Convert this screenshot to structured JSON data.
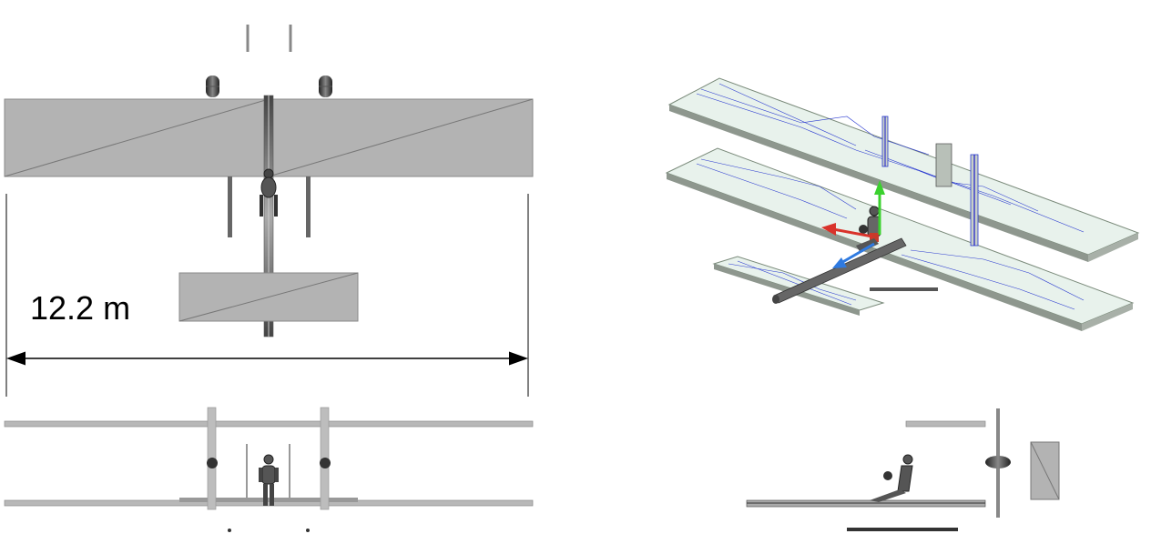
{
  "dimension": {
    "span_label": "12.2 m"
  },
  "views": {
    "top": "top-view",
    "front": "front-view",
    "isometric": "isometric-view",
    "side": "side-view"
  },
  "colors": {
    "panel_fill": "#b3b3b3",
    "panel_edge": "#8a8a8a",
    "wireframe": "#1a1acc",
    "axis_x": "#d9332b",
    "axis_y": "#3bd12f",
    "axis_z": "#2f7ae0"
  }
}
